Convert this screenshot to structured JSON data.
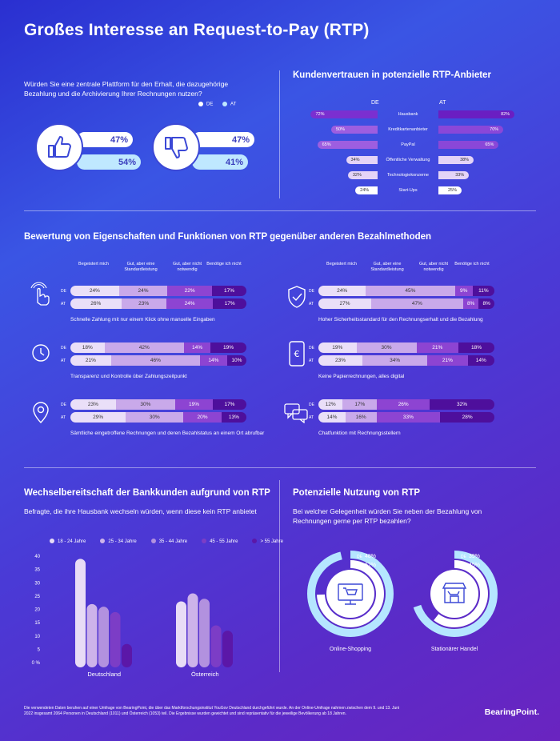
{
  "title": "Großes Interesse an Request-to-Pay (RTP)",
  "platform": {
    "question": "Würden Sie eine zentrale Plattform für den Erhalt, die dazugehörige Bezahlung und die Archivierung Ihrer Rechnungen nutzen?",
    "legend": [
      "DE",
      "AT"
    ],
    "yes": {
      "de": "47%",
      "at": "54%"
    },
    "no": {
      "de": "47%",
      "at": "41%"
    }
  },
  "trust": {
    "title": "Kundenvertrauen in potenzielle RTP-Anbieter",
    "de_label": "DE",
    "at_label": "AT",
    "rows": [
      {
        "label": "Hausbank",
        "de": "72%",
        "at": "82%",
        "de_v": 72,
        "at_v": 82
      },
      {
        "label": "Kreditkartenanbieter",
        "de": "50%",
        "at": "70%",
        "de_v": 50,
        "at_v": 70
      },
      {
        "label": "PayPal",
        "de": "65%",
        "at": "65%",
        "de_v": 65,
        "at_v": 65
      },
      {
        "label": "Öffentliche Verwaltung",
        "de": "34%",
        "at": "38%",
        "de_v": 34,
        "at_v": 38
      },
      {
        "label": "Technologiekonzerne",
        "de": "32%",
        "at": "33%",
        "de_v": 32,
        "at_v": 33
      },
      {
        "label": "Start-Ups",
        "de": "24%",
        "at": "25%",
        "de_v": 24,
        "at_v": 25
      }
    ]
  },
  "ratings": {
    "title": "Bewertung von Eigenschaften und Funktionen von RTP gegenüber anderen Bezahlmethoden",
    "columns": [
      "Begeistert mich",
      "Gut, aber eine Standardleistung",
      "Gut, aber nicht notwendig",
      "Benötige ich nicht"
    ],
    "row_de": "DE",
    "row_at": "AT",
    "items": [
      {
        "desc": "Schnelle Zahlung mit nur einem Klick ohne manuelle Eingaben",
        "de": [
          "24%",
          "24%",
          "22%",
          "17%"
        ],
        "at": [
          "26%",
          "23%",
          "24%",
          "17%"
        ]
      },
      {
        "desc": "Hoher Sicherheitsstandard für den Rechnungserhalt und die Bezahlung",
        "de": [
          "24%",
          "45%",
          "9%",
          "11%"
        ],
        "at": [
          "27%",
          "47%",
          "8%",
          "8%"
        ]
      },
      {
        "desc": "Transparenz und Kontrolle über Zahlungszeitpunkt",
        "de": [
          "18%",
          "42%",
          "14%",
          "19%"
        ],
        "at": [
          "21%",
          "46%",
          "14%",
          "10%"
        ]
      },
      {
        "desc": "Keine Papierrechnungen, alles digital",
        "de": [
          "19%",
          "30%",
          "21%",
          "18%"
        ],
        "at": [
          "23%",
          "34%",
          "21%",
          "14%"
        ]
      },
      {
        "desc": "Sämtliche eingetroffene Rechnungen und deren Bezahlstatus an einem Ort abrufbar",
        "de": [
          "23%",
          "30%",
          "19%",
          "17%"
        ],
        "at": [
          "29%",
          "30%",
          "20%",
          "13%"
        ]
      },
      {
        "desc": "Chatfunktion mit Rechnungsstellern",
        "de": [
          "12%",
          "17%",
          "26%",
          "32%"
        ],
        "at": [
          "14%",
          "16%",
          "33%",
          "28%"
        ]
      }
    ]
  },
  "switch": {
    "title": "Wechselbereitschaft der Bankkunden aufgrund von RTP",
    "subtitle": "Befragte, die ihre Hausbank wechseln würden, wenn diese kein RTP anbietet"
  },
  "chart_data": {
    "type": "bar",
    "categories": [
      "Deutschland",
      "Österreich"
    ],
    "series": [
      {
        "name": "18 - 24 Jahre",
        "values": [
          39,
          23
        ]
      },
      {
        "name": "25 - 34 Jahre",
        "values": [
          22,
          26
        ]
      },
      {
        "name": "35 - 44 Jahre",
        "values": [
          21,
          24
        ]
      },
      {
        "name": "45 - 55 Jahre",
        "values": [
          19,
          14
        ]
      },
      {
        "name": "> 55 Jahre",
        "values": [
          7,
          12
        ]
      }
    ],
    "yticks": [
      "0 %",
      "5",
      "10",
      "15",
      "20",
      "25",
      "30",
      "35",
      "40"
    ],
    "ylim": [
      0,
      40
    ],
    "colors": [
      "#e8dcf6",
      "#cdb3ea",
      "#b291df",
      "#7c3dc6",
      "#5b17a8"
    ]
  },
  "usage": {
    "title": "Potenzielle Nutzung von RTP",
    "question": "Bei welcher Gelegenheit würden Sie neben der Bezahlung von Rechnungen gerne per RTP bezahlen?",
    "items": [
      {
        "label": "Online-Shopping",
        "de_label": "DE",
        "de": "48%",
        "at_label": "AT",
        "at": "62%",
        "de_v": 48,
        "at_v": 62
      },
      {
        "label": "Stationärer Handel",
        "de_label": "DE",
        "de": "39%",
        "at_label": "AT",
        "at": "45%",
        "de_v": 39,
        "at_v": 45
      }
    ]
  },
  "footer": "Die verwendeten Daten beruhen auf einer Umfrage von BearingPoint, die über das Marktforschungsinstitut YouGov Deutschland durchgeführt wurde. An der Online-Umfrage nahmen zwischen dem 9. und 13. Juni 2022 insgesamt 2064 Personen in Deutschland (1011) und Österreich (1053) teil. Die Ergebnisse wurden gewichtet und sind repräsentativ für die jeweilige Bevölkerung ab 18 Jahren.",
  "brand": "BearingPoint."
}
